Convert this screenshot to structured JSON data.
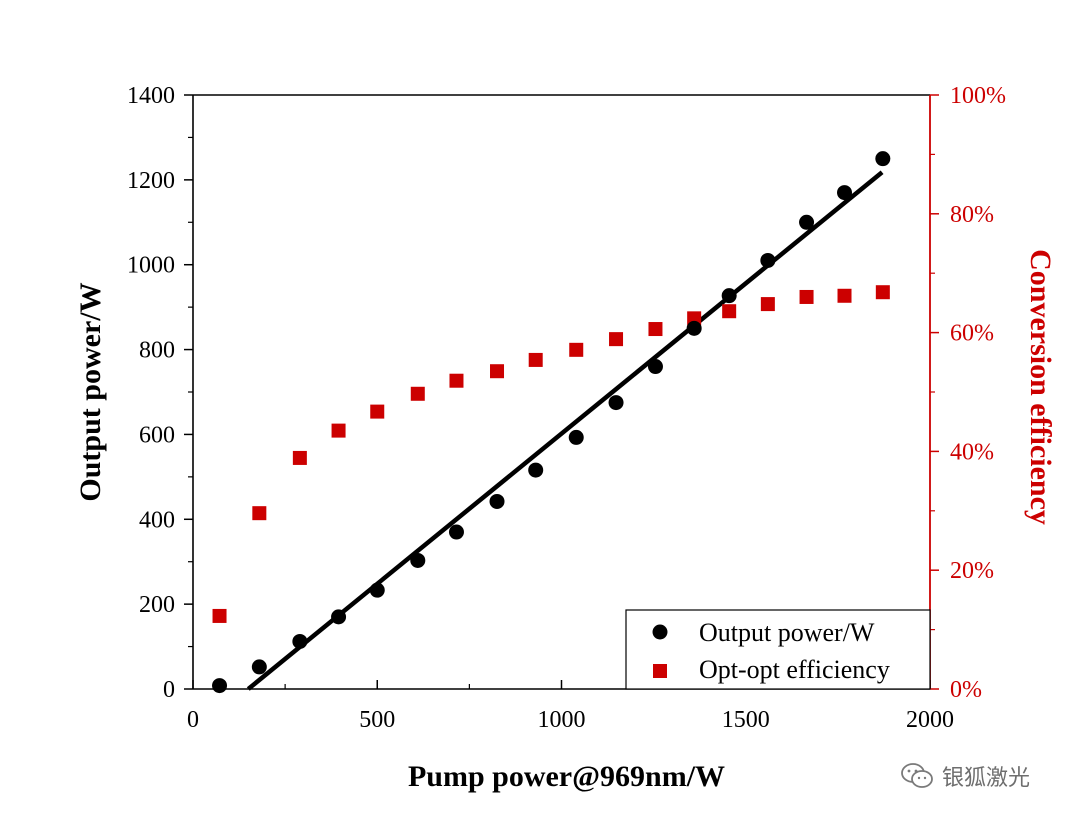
{
  "chart_data": {
    "type": "scatter",
    "xlabel": "Pump power@969nm/W",
    "ylabel": "Output power/W",
    "y2label": "Conversion efficiency",
    "xlim": [
      0,
      2000
    ],
    "ylim": [
      0,
      1400
    ],
    "y2lim": [
      0,
      100
    ],
    "xticks": [
      0,
      500,
      1000,
      1500,
      2000
    ],
    "yticks": [
      0,
      200,
      400,
      600,
      800,
      1000,
      1200,
      1400
    ],
    "y2ticks": [
      0,
      20,
      40,
      60,
      80,
      100
    ],
    "xtick_labels": [
      "0",
      "500",
      "1000",
      "1500",
      "2000"
    ],
    "ytick_labels": [
      "0",
      "200",
      "400",
      "600",
      "800",
      "1000",
      "1200",
      "1400"
    ],
    "y2tick_labels": [
      "0%",
      "20%",
      "40%",
      "60%",
      "80%",
      "100%"
    ],
    "grid": false,
    "legend_position": "bottom-right",
    "colors": {
      "output": "#000000",
      "efficiency": "#cc0000"
    },
    "series": [
      {
        "name": "Output power/W",
        "axis": "left",
        "marker": "circle",
        "x": [
          72,
          180,
          290,
          395,
          500,
          610,
          715,
          825,
          930,
          1040,
          1148,
          1255,
          1360,
          1455,
          1560,
          1665,
          1768,
          1872
        ],
        "y": [
          8,
          52,
          112,
          170,
          233,
          303,
          370,
          442,
          516,
          593,
          675,
          760,
          850,
          927,
          1010,
          1100,
          1170,
          1250
        ]
      },
      {
        "name": "Opt-opt efficiency",
        "axis": "right",
        "marker": "square",
        "x": [
          72,
          180,
          290,
          395,
          500,
          610,
          715,
          825,
          930,
          1040,
          1148,
          1255,
          1360,
          1455,
          1560,
          1665,
          1768,
          1872
        ],
        "y": [
          12.3,
          29.6,
          38.9,
          43.5,
          46.7,
          49.7,
          51.9,
          53.5,
          55.4,
          57.1,
          58.9,
          60.6,
          62.4,
          63.6,
          64.8,
          66.0,
          66.2,
          66.8
        ]
      },
      {
        "axis": "left",
        "type": "line",
        "x": [
          150,
          1870
        ],
        "y": [
          0,
          1218
        ]
      }
    ]
  },
  "watermark": {
    "text": "银狐激光",
    "icon": "wechat-icon"
  }
}
